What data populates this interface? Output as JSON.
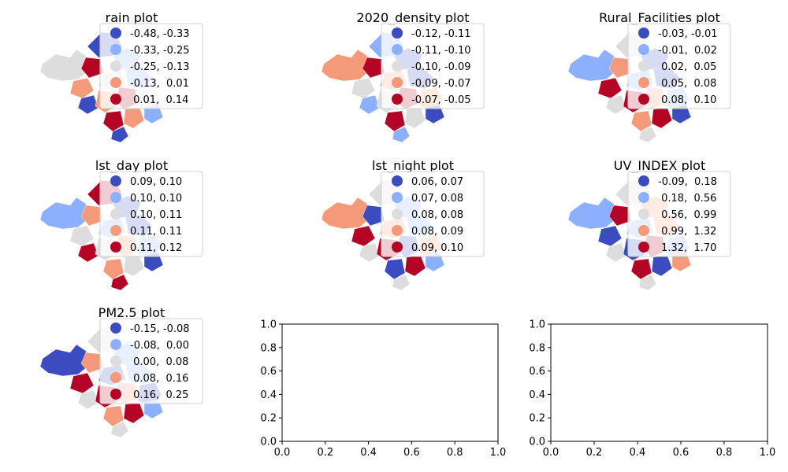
{
  "chart_data": [
    {
      "type": "choropleth-map",
      "title": "rain plot",
      "legend": {
        "placement": "top-right",
        "entries": [
          {
            "label": "-0.48, -0.33",
            "color": "#3b4cc0"
          },
          {
            "label": "-0.33, -0.25",
            "color": "#8db0fe"
          },
          {
            "label": "-0.25, -0.13",
            "color": "#dddddd"
          },
          {
            "label": "-0.13,  0.01",
            "color": "#f49a7b"
          },
          {
            "label": " 0.01,  0.14",
            "color": "#b40426"
          }
        ]
      }
    },
    {
      "type": "choropleth-map",
      "title": "2020_density plot",
      "legend": {
        "placement": "top-right",
        "entries": [
          {
            "label": "-0.12, -0.11",
            "color": "#3b4cc0"
          },
          {
            "label": "-0.11, -0.10",
            "color": "#8db0fe"
          },
          {
            "label": "-0.10, -0.09",
            "color": "#dddddd"
          },
          {
            "label": "-0.09, -0.07",
            "color": "#f49a7b"
          },
          {
            "label": "-0.07, -0.05",
            "color": "#b40426"
          }
        ]
      }
    },
    {
      "type": "choropleth-map",
      "title": "Rural_Facilities plot",
      "legend": {
        "placement": "top-right",
        "entries": [
          {
            "label": "-0.03, -0.01",
            "color": "#3b4cc0"
          },
          {
            "label": "-0.01,  0.02",
            "color": "#8db0fe"
          },
          {
            "label": " 0.02,  0.05",
            "color": "#dddddd"
          },
          {
            "label": " 0.05,  0.08",
            "color": "#f49a7b"
          },
          {
            "label": " 0.08,  0.10",
            "color": "#b40426"
          }
        ]
      }
    },
    {
      "type": "choropleth-map",
      "title": "lst_day plot",
      "legend": {
        "placement": "top-right",
        "entries": [
          {
            "label": "0.09, 0.10",
            "color": "#3b4cc0"
          },
          {
            "label": "0.10, 0.10",
            "color": "#8db0fe"
          },
          {
            "label": "0.10, 0.11",
            "color": "#dddddd"
          },
          {
            "label": "0.11, 0.11",
            "color": "#f49a7b"
          },
          {
            "label": "0.11, 0.12",
            "color": "#b40426"
          }
        ]
      }
    },
    {
      "type": "choropleth-map",
      "title": "lst_night plot",
      "legend": {
        "placement": "top-right",
        "entries": [
          {
            "label": "0.06, 0.07",
            "color": "#3b4cc0"
          },
          {
            "label": "0.07, 0.08",
            "color": "#8db0fe"
          },
          {
            "label": "0.08, 0.08",
            "color": "#dddddd"
          },
          {
            "label": "0.08, 0.09",
            "color": "#f49a7b"
          },
          {
            "label": "0.09, 0.10",
            "color": "#b40426"
          }
        ]
      }
    },
    {
      "type": "choropleth-map",
      "title": "UV_INDEX plot",
      "legend": {
        "placement": "top-right",
        "entries": [
          {
            "label": "-0.09,  0.18",
            "color": "#3b4cc0"
          },
          {
            "label": " 0.18,  0.56",
            "color": "#8db0fe"
          },
          {
            "label": " 0.56,  0.99",
            "color": "#dddddd"
          },
          {
            "label": " 0.99,  1.32",
            "color": "#f49a7b"
          },
          {
            "label": " 1.32,  1.70",
            "color": "#b40426"
          }
        ]
      }
    },
    {
      "type": "choropleth-map",
      "title": "PM2.5 plot",
      "legend": {
        "placement": "top-right",
        "entries": [
          {
            "label": "-0.15, -0.08",
            "color": "#3b4cc0"
          },
          {
            "label": "-0.08,  0.00",
            "color": "#8db0fe"
          },
          {
            "label": " 0.00,  0.08",
            "color": "#dddddd"
          },
          {
            "label": " 0.08,  0.16",
            "color": "#f49a7b"
          },
          {
            "label": " 0.16,  0.25",
            "color": "#b40426"
          }
        ]
      }
    },
    {
      "type": "empty-axes",
      "title": "",
      "xlim": [
        0,
        1
      ],
      "ylim": [
        0,
        1
      ],
      "xticks": [
        "0.0",
        "0.2",
        "0.4",
        "0.6",
        "0.8",
        "1.0"
      ],
      "yticks": [
        "0.0",
        "0.2",
        "0.4",
        "0.6",
        "0.8",
        "1.0"
      ]
    },
    {
      "type": "empty-axes",
      "title": "",
      "xlim": [
        0,
        1
      ],
      "ylim": [
        0,
        1
      ],
      "xticks": [
        "0.0",
        "0.2",
        "0.4",
        "0.6",
        "0.8",
        "1.0"
      ],
      "yticks": [
        "0.0",
        "0.2",
        "0.4",
        "0.6",
        "0.8",
        "1.0"
      ]
    }
  ]
}
